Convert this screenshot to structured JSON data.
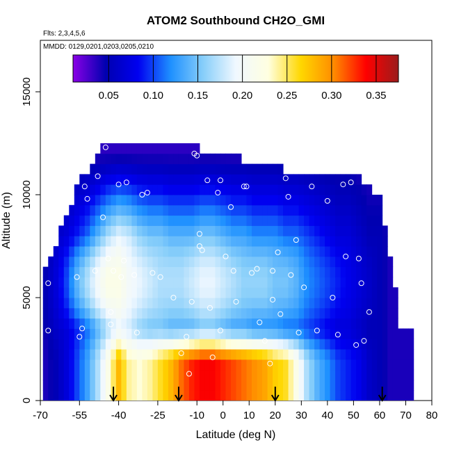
{
  "chart_data": {
    "type": "heatmap",
    "title": "ATOM2 Southbound CH2O_GMI",
    "subtitle_flights": "Flts: 2,3,4,5,6",
    "subtitle_dates": "MMDD: 0129,0201,0203,0205,0210",
    "xlabel": "Latitude (deg N)",
    "ylabel": "Altitude (m)",
    "xlim": [
      -70,
      80
    ],
    "ylim": [
      0,
      17500
    ],
    "x_ticks": [
      -70,
      -55,
      -40,
      -25,
      -10,
      0,
      10,
      20,
      30,
      40,
      50,
      60,
      70,
      80
    ],
    "x_tick_labels": [
      "-70",
      "-55",
      "-40",
      "-25",
      "-10",
      "0",
      "10",
      "20",
      "30",
      "40",
      "50",
      "60",
      "70",
      "80"
    ],
    "y_ticks": [
      0,
      5000,
      10000,
      15000
    ],
    "y_tick_labels": [
      "0",
      "5000",
      "10000",
      "15000"
    ],
    "colorbar": {
      "range": [
        0.01,
        0.375
      ],
      "ticks": [
        0.05,
        0.1,
        0.15,
        0.2,
        0.25,
        0.3,
        0.35
      ],
      "tick_labels": [
        "0.05",
        "0.10",
        "0.15",
        "0.20",
        "0.25",
        "0.30",
        "0.35"
      ],
      "colors": [
        "#8a00e6",
        "#0000b0",
        "#0000f0",
        "#1e90ff",
        "#87cefa",
        "#f0f8ff",
        "#ffffe0",
        "#ffd700",
        "#ff8c00",
        "#ff0000",
        "#9b1c1c"
      ]
    },
    "arrows_latitude": [
      -42,
      -17,
      20,
      61
    ],
    "cell_dx": 2,
    "profiles": [
      {
        "lat": -68,
        "top": 6500,
        "base": 0.04,
        "peak": 0.05,
        "mid": 0.045
      },
      {
        "lat": -64,
        "top": 7500,
        "base": 0.05,
        "peak": 0.07,
        "mid": 0.06
      },
      {
        "lat": -60,
        "top": 8800,
        "base": 0.07,
        "peak": 0.1,
        "mid": 0.07
      },
      {
        "lat": -56,
        "top": 10200,
        "base": 0.1,
        "peak": 0.14,
        "mid": 0.09
      },
      {
        "lat": -52,
        "top": 11000,
        "base": 0.13,
        "peak": 0.17,
        "mid": 0.11
      },
      {
        "lat": -48,
        "top": 11800,
        "base": 0.17,
        "peak": 0.2,
        "mid": 0.14
      },
      {
        "lat": -44,
        "top": 12400,
        "base": 0.22,
        "peak": 0.22,
        "mid": 0.17
      },
      {
        "lat": -40,
        "top": 12400,
        "base": 0.28,
        "peak": 0.22,
        "mid": 0.19
      },
      {
        "lat": -36,
        "top": 12400,
        "base": 0.24,
        "peak": 0.2,
        "mid": 0.18
      },
      {
        "lat": -32,
        "top": 12400,
        "base": 0.23,
        "peak": 0.19,
        "mid": 0.16
      },
      {
        "lat": -28,
        "top": 12400,
        "base": 0.24,
        "peak": 0.18,
        "mid": 0.15
      },
      {
        "lat": -24,
        "top": 12400,
        "base": 0.26,
        "peak": 0.17,
        "mid": 0.15
      },
      {
        "lat": -20,
        "top": 12400,
        "base": 0.28,
        "peak": 0.17,
        "mid": 0.14
      },
      {
        "lat": -16,
        "top": 12400,
        "base": 0.31,
        "peak": 0.17,
        "mid": 0.14
      },
      {
        "lat": -12,
        "top": 12400,
        "base": 0.33,
        "peak": 0.18,
        "mid": 0.14
      },
      {
        "lat": -8,
        "top": 12000,
        "base": 0.34,
        "peak": 0.19,
        "mid": 0.15
      },
      {
        "lat": -4,
        "top": 12000,
        "base": 0.34,
        "peak": 0.19,
        "mid": 0.15
      },
      {
        "lat": 0,
        "top": 12000,
        "base": 0.33,
        "peak": 0.18,
        "mid": 0.14
      },
      {
        "lat": 4,
        "top": 12000,
        "base": 0.32,
        "peak": 0.17,
        "mid": 0.13
      },
      {
        "lat": 8,
        "top": 11200,
        "base": 0.31,
        "peak": 0.16,
        "mid": 0.13
      },
      {
        "lat": 12,
        "top": 11200,
        "base": 0.3,
        "peak": 0.16,
        "mid": 0.12
      },
      {
        "lat": 16,
        "top": 11200,
        "base": 0.29,
        "peak": 0.16,
        "mid": 0.12
      },
      {
        "lat": 20,
        "top": 11200,
        "base": 0.27,
        "peak": 0.15,
        "mid": 0.12
      },
      {
        "lat": 24,
        "top": 11000,
        "base": 0.26,
        "peak": 0.15,
        "mid": 0.11
      },
      {
        "lat": 28,
        "top": 11000,
        "base": 0.22,
        "peak": 0.14,
        "mid": 0.11
      },
      {
        "lat": 32,
        "top": 11000,
        "base": 0.17,
        "peak": 0.12,
        "mid": 0.1
      },
      {
        "lat": 36,
        "top": 10800,
        "base": 0.14,
        "peak": 0.11,
        "mid": 0.09
      },
      {
        "lat": 40,
        "top": 10600,
        "base": 0.12,
        "peak": 0.1,
        "mid": 0.08
      },
      {
        "lat": 44,
        "top": 10600,
        "base": 0.1,
        "peak": 0.09,
        "mid": 0.07
      },
      {
        "lat": 48,
        "top": 10600,
        "base": 0.09,
        "peak": 0.08,
        "mid": 0.07
      },
      {
        "lat": 52,
        "top": 10600,
        "base": 0.08,
        "peak": 0.07,
        "mid": 0.06
      },
      {
        "lat": 56,
        "top": 10200,
        "base": 0.06,
        "peak": 0.06,
        "mid": 0.05
      },
      {
        "lat": 60,
        "top": 9800,
        "base": 0.05,
        "peak": 0.05,
        "mid": 0.05
      },
      {
        "lat": 64,
        "top": 7000,
        "base": 0.04,
        "peak": 0.04,
        "mid": 0.04
      },
      {
        "lat": 68,
        "top": 3500,
        "base": 0.04,
        "peak": 0.04,
        "mid": 0.04
      }
    ],
    "sample_points": [
      [
        -67,
        5700
      ],
      [
        -67,
        3400
      ],
      [
        -56,
        6000
      ],
      [
        -55,
        3100
      ],
      [
        -54,
        3500
      ],
      [
        -53,
        11600
      ],
      [
        -53,
        10400
      ],
      [
        -52,
        9800
      ],
      [
        -49,
        6300
      ],
      [
        -48,
        10900
      ],
      [
        -46,
        8900
      ],
      [
        -45,
        12300
      ],
      [
        -44,
        6900
      ],
      [
        -43,
        4300
      ],
      [
        -43,
        3700
      ],
      [
        -42,
        6300
      ],
      [
        -40,
        10500
      ],
      [
        -39,
        6000
      ],
      [
        -38,
        6800
      ],
      [
        -37,
        10600
      ],
      [
        -34,
        6100
      ],
      [
        -33,
        3300
      ],
      [
        -31,
        10000
      ],
      [
        -29,
        10100
      ],
      [
        -27,
        6200
      ],
      [
        -24,
        6000
      ],
      [
        -19,
        5000
      ],
      [
        -16,
        2300
      ],
      [
        -14,
        3100
      ],
      [
        -13,
        1300
      ],
      [
        -12,
        4800
      ],
      [
        -11,
        12000
      ],
      [
        -10,
        11900
      ],
      [
        -9,
        8100
      ],
      [
        -9,
        7500
      ],
      [
        -8,
        7300
      ],
      [
        -6,
        10700
      ],
      [
        -5,
        4500
      ],
      [
        -4,
        2100
      ],
      [
        -2,
        10100
      ],
      [
        -1,
        10700
      ],
      [
        -1,
        3400
      ],
      [
        1,
        7000
      ],
      [
        3,
        9400
      ],
      [
        4,
        6300
      ],
      [
        5,
        4800
      ],
      [
        8,
        10400
      ],
      [
        9,
        10400
      ],
      [
        11,
        6200
      ],
      [
        13,
        6400
      ],
      [
        14,
        3800
      ],
      [
        16,
        2900
      ],
      [
        18,
        1800
      ],
      [
        19,
        4900
      ],
      [
        19,
        6300
      ],
      [
        21,
        7200
      ],
      [
        22,
        4200
      ],
      [
        24,
        10800
      ],
      [
        25,
        9900
      ],
      [
        26,
        6100
      ],
      [
        28,
        7800
      ],
      [
        29,
        3300
      ],
      [
        31,
        5500
      ],
      [
        34,
        10400
      ],
      [
        36,
        3400
      ],
      [
        40,
        9700
      ],
      [
        42,
        5000
      ],
      [
        44,
        3200
      ],
      [
        46,
        10500
      ],
      [
        47,
        7000
      ],
      [
        49,
        10600
      ],
      [
        51,
        2700
      ],
      [
        52,
        6900
      ],
      [
        53,
        5700
      ],
      [
        54,
        2900
      ],
      [
        56,
        4300
      ]
    ]
  }
}
